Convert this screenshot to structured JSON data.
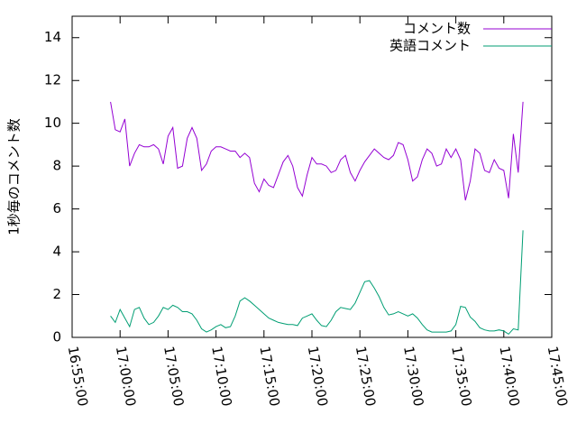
{
  "chart_data": {
    "type": "line",
    "y_label": "1秒毎のコメント数",
    "x": [
      "16:59:00",
      "16:59:30",
      "17:00:00",
      "17:00:30",
      "17:01:00",
      "17:01:30",
      "17:02:00",
      "17:02:30",
      "17:03:00",
      "17:03:30",
      "17:04:00",
      "17:04:30",
      "17:05:00",
      "17:05:30",
      "17:06:00",
      "17:06:30",
      "17:07:00",
      "17:07:30",
      "17:08:00",
      "17:08:30",
      "17:09:00",
      "17:09:30",
      "17:10:00",
      "17:10:30",
      "17:11:00",
      "17:11:30",
      "17:12:00",
      "17:12:30",
      "17:13:00",
      "17:13:30",
      "17:14:00",
      "17:14:30",
      "17:15:00",
      "17:15:30",
      "17:16:00",
      "17:16:30",
      "17:17:00",
      "17:17:30",
      "17:18:00",
      "17:18:30",
      "17:19:00",
      "17:19:30",
      "17:20:00",
      "17:20:30",
      "17:21:00",
      "17:21:30",
      "17:22:00",
      "17:22:30",
      "17:23:00",
      "17:23:30",
      "17:24:00",
      "17:24:30",
      "17:25:00",
      "17:25:30",
      "17:26:00",
      "17:26:30",
      "17:27:00",
      "17:27:30",
      "17:28:00",
      "17:28:30",
      "17:29:00",
      "17:29:30",
      "17:30:00",
      "17:30:30",
      "17:31:00",
      "17:31:30",
      "17:32:00",
      "17:32:30",
      "17:33:00",
      "17:33:30",
      "17:34:00",
      "17:34:30",
      "17:35:00",
      "17:35:30",
      "17:36:00",
      "17:36:30",
      "17:37:00",
      "17:37:30",
      "17:38:00",
      "17:38:30",
      "17:39:00",
      "17:39:30",
      "17:40:00",
      "17:40:30",
      "17:41:00",
      "17:41:30",
      "17:42:00"
    ],
    "series": [
      {
        "name": "コメント数",
        "color": "#9400d3",
        "values": [
          11.0,
          9.7,
          9.6,
          10.2,
          8.0,
          8.6,
          9.0,
          8.9,
          8.9,
          9.0,
          8.8,
          8.1,
          9.4,
          9.8,
          7.9,
          8.0,
          9.3,
          9.8,
          9.3,
          7.8,
          8.1,
          8.7,
          8.9,
          8.9,
          8.8,
          8.7,
          8.7,
          8.4,
          8.6,
          8.4,
          7.2,
          6.8,
          7.4,
          7.1,
          7.0,
          7.6,
          8.2,
          8.5,
          8.0,
          7.0,
          6.6,
          7.6,
          8.4,
          8.1,
          8.1,
          8.0,
          7.7,
          7.8,
          8.3,
          8.5,
          7.7,
          7.3,
          7.8,
          8.2,
          8.5,
          8.8,
          8.6,
          8.4,
          8.3,
          8.5,
          9.1,
          9.0,
          8.3,
          7.3,
          7.5,
          8.3,
          8.8,
          8.6,
          8.0,
          8.1,
          8.8,
          8.4,
          8.8,
          8.3,
          6.4,
          7.3,
          8.8,
          8.6,
          7.8,
          7.7,
          8.3,
          7.9,
          7.8,
          6.5,
          9.5,
          7.7,
          11.0
        ]
      },
      {
        "name": "英語コメント",
        "color": "#009e73",
        "values": [
          1.0,
          0.7,
          1.3,
          0.9,
          0.5,
          1.3,
          1.4,
          0.9,
          0.6,
          0.7,
          1.0,
          1.4,
          1.3,
          1.5,
          1.4,
          1.2,
          1.2,
          1.1,
          0.8,
          0.4,
          0.25,
          0.35,
          0.5,
          0.6,
          0.45,
          0.5,
          1.0,
          1.7,
          1.85,
          1.7,
          1.5,
          1.3,
          1.1,
          0.9,
          0.8,
          0.7,
          0.65,
          0.6,
          0.6,
          0.55,
          0.9,
          1.0,
          1.1,
          0.8,
          0.55,
          0.5,
          0.8,
          1.2,
          1.4,
          1.35,
          1.3,
          1.6,
          2.1,
          2.6,
          2.65,
          2.3,
          1.9,
          1.4,
          1.05,
          1.1,
          1.2,
          1.1,
          1.0,
          1.1,
          0.9,
          0.6,
          0.35,
          0.25,
          0.25,
          0.25,
          0.25,
          0.3,
          0.6,
          1.45,
          1.4,
          0.95,
          0.75,
          0.45,
          0.35,
          0.3,
          0.3,
          0.35,
          0.3,
          0.15,
          0.4,
          0.35,
          5.0
        ]
      }
    ],
    "xlim": [
      "16:55:00",
      "17:45:00"
    ],
    "xticks": [
      "16:55:00",
      "17:00:00",
      "17:05:00",
      "17:10:00",
      "17:15:00",
      "17:20:00",
      "17:25:00",
      "17:30:00",
      "17:35:00",
      "17:40:00",
      "17:45:00"
    ],
    "ylim": [
      0,
      15
    ],
    "yticks": [
      0,
      2,
      4,
      6,
      8,
      10,
      12,
      14
    ],
    "legend": "top-right"
  }
}
